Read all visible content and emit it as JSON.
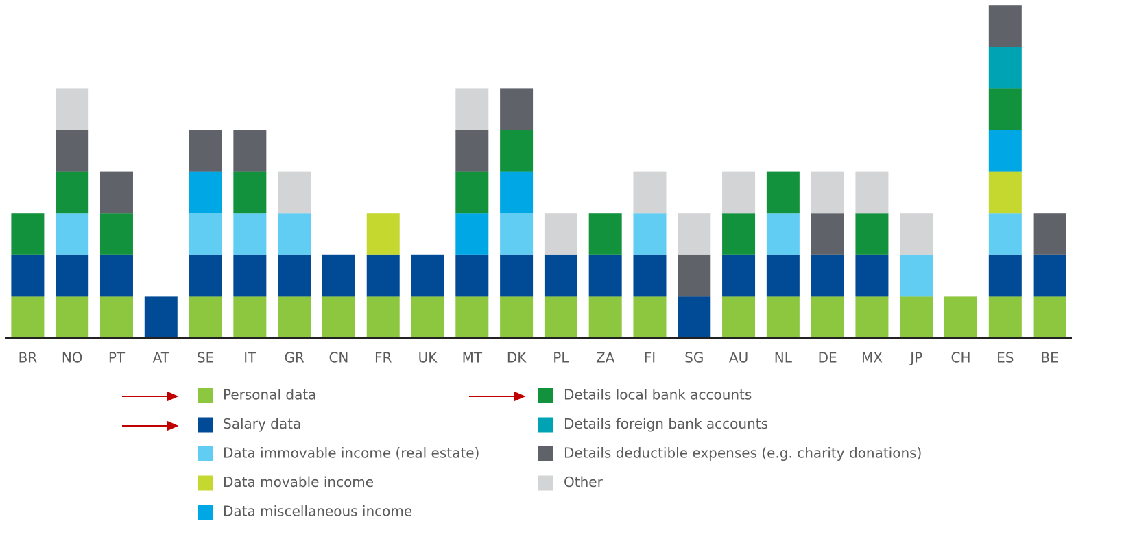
{
  "chart_data": {
    "type": "stacked_bar",
    "categories": [
      "BR",
      "NO",
      "PT",
      "AT",
      "SE",
      "IT",
      "GR",
      "CN",
      "FR",
      "UK",
      "MT",
      "DK",
      "PL",
      "ZA",
      "FI",
      "SG",
      "AU",
      "NL",
      "DE",
      "MX",
      "JP",
      "CH",
      "ES",
      "BE"
    ],
    "series": [
      {
        "name": "Personal data",
        "color": "#8dc63f",
        "values": [
          1,
          1,
          1,
          0,
          1,
          1,
          1,
          1,
          1,
          1,
          1,
          1,
          1,
          1,
          1,
          0,
          1,
          1,
          1,
          1,
          1,
          1,
          1,
          1
        ]
      },
      {
        "name": "Salary data",
        "color": "#004a96",
        "values": [
          1,
          1,
          1,
          1,
          1,
          1,
          1,
          1,
          1,
          1,
          1,
          1,
          1,
          1,
          1,
          1,
          1,
          1,
          1,
          1,
          0,
          0,
          1,
          1
        ]
      },
      {
        "name": "Data immovable income (real estate)",
        "color": "#62cdf2",
        "values": [
          0,
          1,
          0,
          0,
          1,
          1,
          1,
          0,
          0,
          0,
          0,
          1,
          0,
          0,
          1,
          0,
          0,
          1,
          0,
          0,
          1,
          0,
          1,
          0
        ]
      },
      {
        "name": "Data movable income",
        "color": "#c5d830",
        "values": [
          0,
          0,
          0,
          0,
          0,
          0,
          0,
          0,
          1,
          0,
          0,
          0,
          0,
          0,
          0,
          0,
          0,
          0,
          0,
          0,
          0,
          0,
          1,
          0
        ]
      },
      {
        "name": "Data miscellaneous income",
        "color": "#00a7e5",
        "values": [
          0,
          0,
          0,
          0,
          1,
          0,
          0,
          0,
          0,
          0,
          1,
          1,
          0,
          0,
          0,
          0,
          0,
          0,
          0,
          0,
          0,
          0,
          1,
          0
        ]
      },
      {
        "name": "Details local bank accounts",
        "color": "#13923e",
        "values": [
          1,
          1,
          1,
          0,
          0,
          1,
          0,
          0,
          0,
          0,
          1,
          1,
          0,
          1,
          0,
          0,
          1,
          1,
          0,
          1,
          0,
          0,
          1,
          0
        ]
      },
      {
        "name": "Details foreign bank accounts",
        "color": "#00a3b4",
        "values": [
          0,
          0,
          0,
          0,
          0,
          0,
          0,
          0,
          0,
          0,
          0,
          0,
          0,
          0,
          0,
          0,
          0,
          0,
          0,
          0,
          0,
          0,
          1,
          0
        ]
      },
      {
        "name": "Details deductible expenses (e.g. charity donations)",
        "color": "#5f6268",
        "values": [
          0,
          1,
          1,
          0,
          1,
          1,
          0,
          0,
          0,
          0,
          1,
          1,
          0,
          0,
          0,
          1,
          0,
          0,
          1,
          0,
          0,
          0,
          1,
          1
        ]
      },
      {
        "name": "Other",
        "color": "#d3d4d6",
        "values": [
          0,
          1,
          0,
          0,
          0,
          0,
          1,
          0,
          0,
          0,
          1,
          0,
          1,
          0,
          1,
          1,
          1,
          0,
          1,
          1,
          1,
          0,
          0,
          0
        ]
      }
    ]
  }
}
